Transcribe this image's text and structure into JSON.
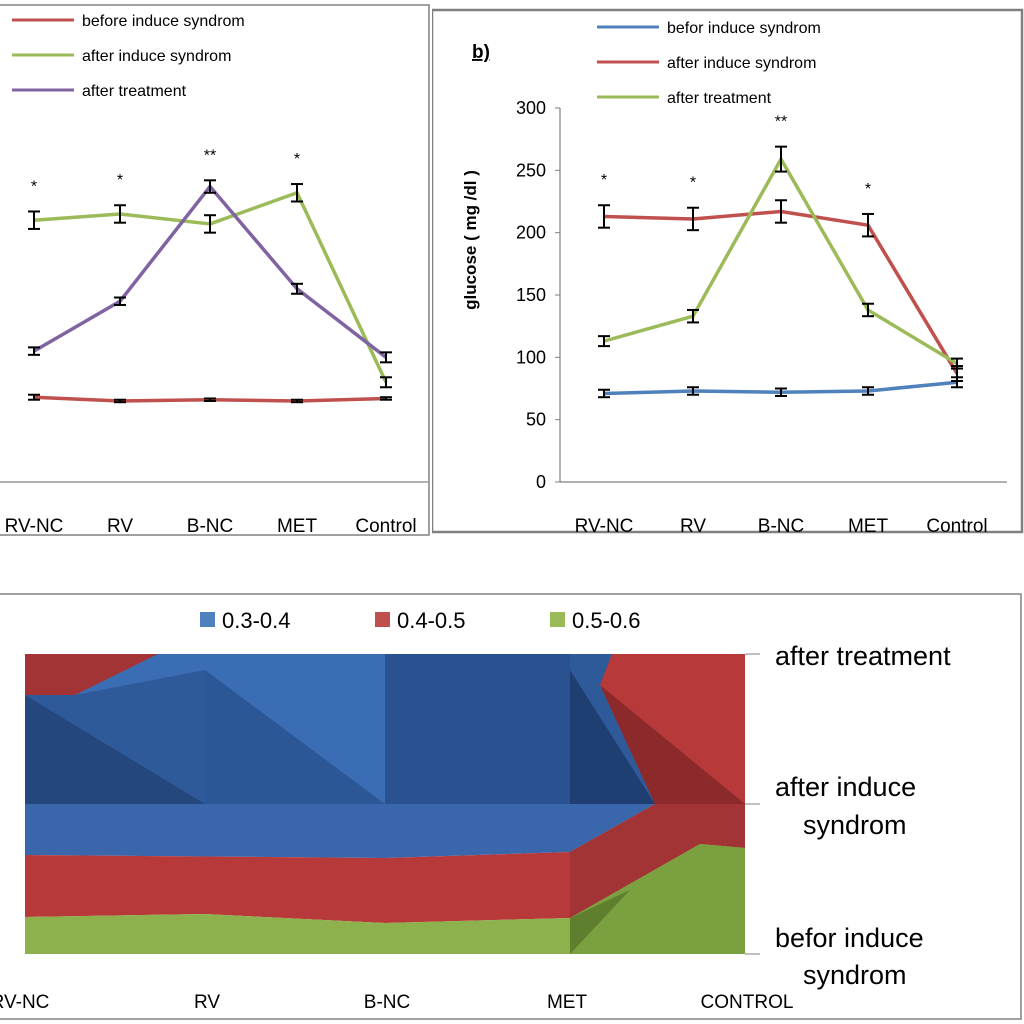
{
  "colors": {
    "red": "#c0504d",
    "green": "#9bbb59",
    "purple": "#8064a2",
    "blue": "#4f81bd",
    "frame": "#808080"
  },
  "chart_data": [
    {
      "type": "line",
      "panel": "left",
      "categories": [
        "RV-NC",
        "RV",
        "B-NC",
        "MET",
        "Control"
      ],
      "ylim": [
        0,
        300
      ],
      "series": [
        {
          "name": "before induce syndrom",
          "color": "red",
          "values": [
            68,
            65,
            66,
            65,
            67
          ],
          "errors": [
            2,
            1,
            1,
            1,
            1
          ]
        },
        {
          "name": "after induce syndrom",
          "color": "green",
          "values": [
            210,
            215,
            207,
            232,
            80
          ],
          "errors": [
            7,
            7,
            7,
            7,
            4
          ]
        },
        {
          "name": "after treatment",
          "color": "purple",
          "values": [
            105,
            145,
            237,
            155,
            100
          ],
          "errors": [
            3,
            3,
            5,
            4,
            4
          ]
        }
      ],
      "annotations": [
        "*",
        "*",
        "**",
        "*",
        ""
      ]
    },
    {
      "type": "line",
      "panel": "right",
      "label": "b)",
      "ylabel": "glucose ( mg /dl )",
      "categories": [
        "RV-NC",
        "RV",
        "B-NC",
        "MET",
        "Control"
      ],
      "ylim": [
        0,
        300
      ],
      "yticks": [
        0,
        50,
        100,
        150,
        200,
        250,
        300
      ],
      "series": [
        {
          "name": "befor induce syndrom",
          "color": "blue",
          "values": [
            71,
            73,
            72,
            73,
            80
          ],
          "errors": [
            3,
            3,
            3,
            3,
            4
          ]
        },
        {
          "name": "after induce syndrom",
          "color": "red",
          "values": [
            213,
            211,
            217,
            206,
            87
          ],
          "errors": [
            9,
            9,
            9,
            9,
            6
          ]
        },
        {
          "name": "after treatment",
          "color": "green",
          "values": [
            113,
            133,
            259,
            138,
            95
          ],
          "errors": [
            4,
            5,
            10,
            5,
            4
          ]
        }
      ],
      "annotations": [
        "*",
        "*",
        "**",
        "*",
        ""
      ]
    },
    {
      "type": "area",
      "panel": "bottom",
      "categories": [
        "RV-NC",
        "RV",
        "B-NC",
        "MET",
        "CONTROL"
      ],
      "rows": [
        "after treatment",
        "after induce syndrom",
        "befor induce syndrom"
      ],
      "legend": [
        {
          "label": "0.3-0.4",
          "color": "blue"
        },
        {
          "label": "0.4-0.5",
          "color": "red"
        },
        {
          "label": "0.5-0.6",
          "color": "green"
        }
      ]
    }
  ]
}
